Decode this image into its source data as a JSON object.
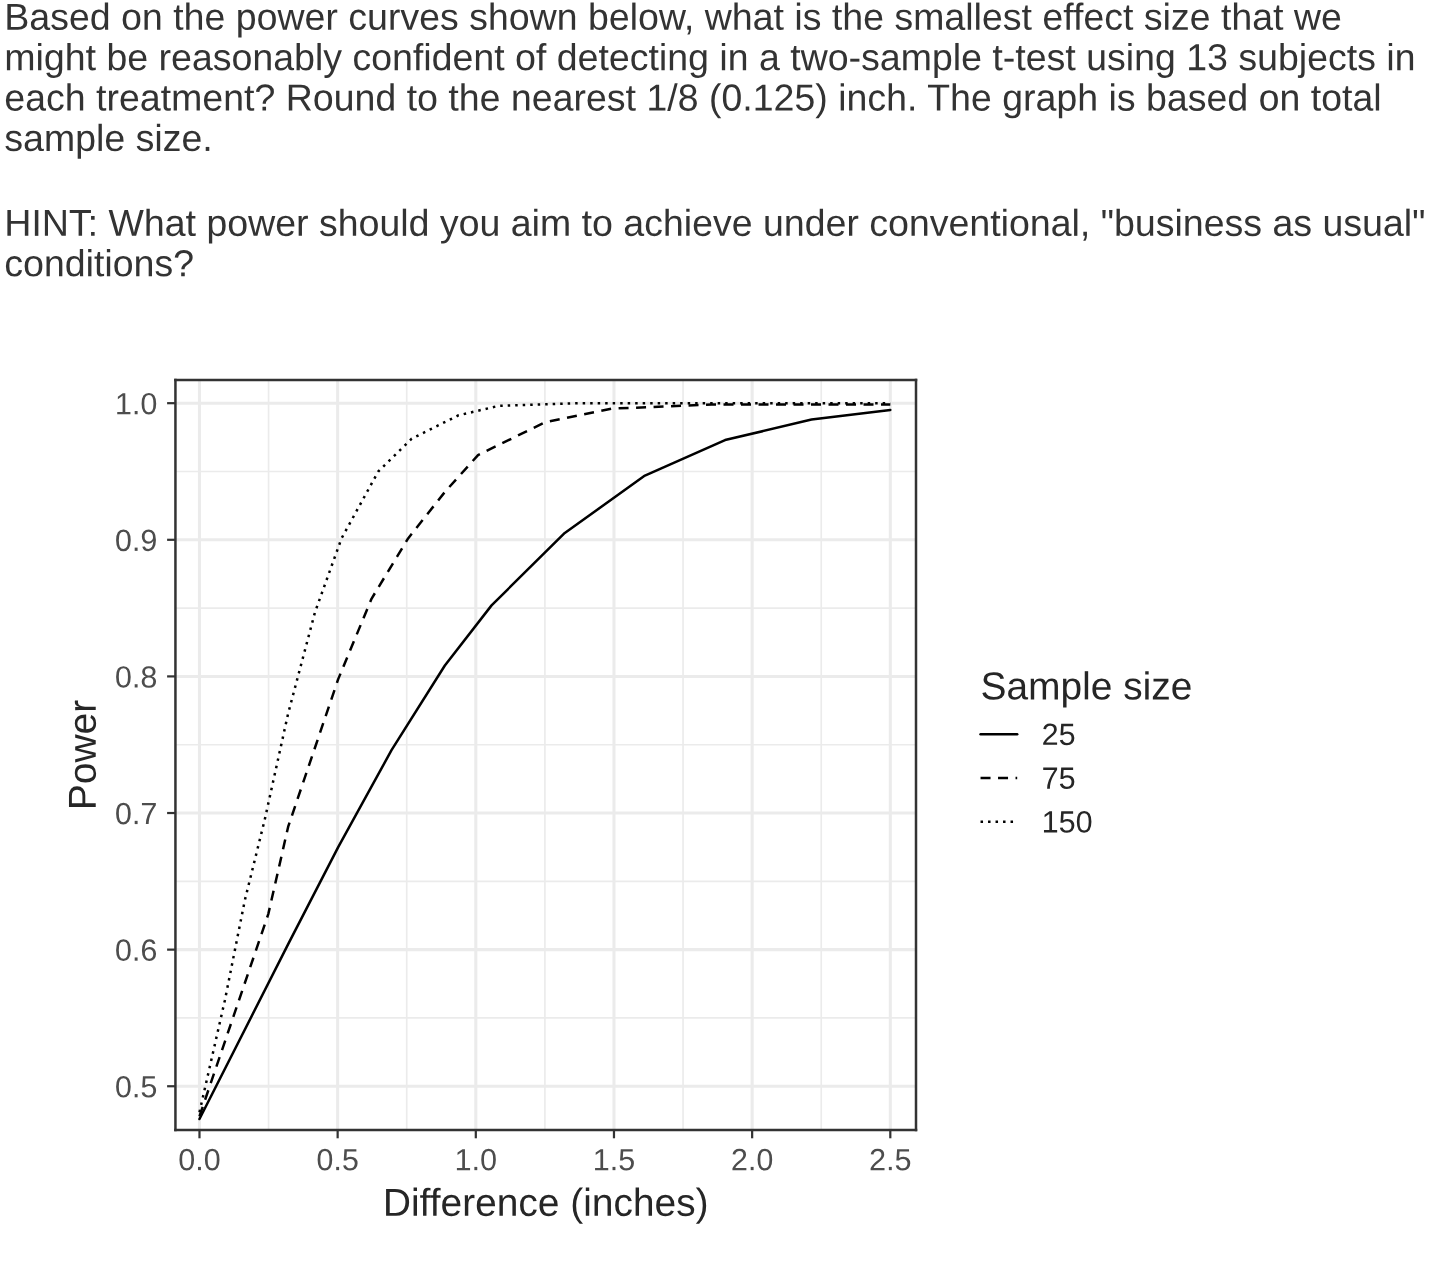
{
  "chart_data": {
    "type": "line",
    "title": "Based on the power curves shown below, what is the smallest effect size that we might be reasonably confident of detecting in a two-sample t-test using 13 subjects in each treatment? Round to the nearest 1/8 (0.125) inch. The graph is based on total sample size.",
    "subtitle": "HINT: What power should you aim to achieve under conventional, \"business as usual\" conditions?",
    "xlabel": "Difference (inches)",
    "ylabel": "Power",
    "legend_title": "Sample size",
    "series": [
      {
        "name": "25",
        "color": "#000000",
        "line_style": "solid",
        "x": [
          0,
          0.321,
          0.502,
          0.695,
          0.888,
          1.057,
          1.322,
          1.612,
          1.902,
          2.215,
          2.5
        ],
        "values": [
          0.476,
          0.604,
          0.675,
          0.746,
          0.808,
          0.852,
          0.905,
          0.947,
          0.973,
          0.988,
          0.995
        ]
      },
      {
        "name": "75",
        "color": "#000000",
        "line_style": "dashed",
        "x": [
          0,
          0.249,
          0.321,
          0.502,
          0.623,
          0.755,
          0.888,
          1.008,
          1.25,
          1.491,
          1.853,
          2.5
        ],
        "values": [
          0.478,
          0.626,
          0.69,
          0.798,
          0.857,
          0.901,
          0.935,
          0.962,
          0.986,
          0.996,
          0.999,
          0.999
        ]
      },
      {
        "name": "150",
        "color": "#000000",
        "line_style": "dotted",
        "x": [
          0,
          0.092,
          0.164,
          0.236,
          0.321,
          0.418,
          0.514,
          0.647,
          0.768,
          0.936,
          1.081,
          1.371,
          2.5
        ],
        "values": [
          0.481,
          0.563,
          0.636,
          0.695,
          0.773,
          0.847,
          0.901,
          0.95,
          0.974,
          0.991,
          0.998,
          1.0,
          1.0
        ]
      }
    ],
    "xlim": [
      -0.087,
      2.593
    ],
    "ylim": [
      0.468,
      1.017
    ],
    "xticks": [
      {
        "value": 0,
        "label": "0.0"
      },
      0.5,
      {
        "value": 1,
        "label": "1.0"
      },
      1.5,
      {
        "value": 2,
        "label": "2.0"
      },
      2.5
    ],
    "yticks": [
      0.5,
      0.6,
      0.7,
      0.8,
      0.9,
      {
        "value": 1,
        "label": "1.0"
      }
    ],
    "grid": true,
    "legend": "right"
  }
}
